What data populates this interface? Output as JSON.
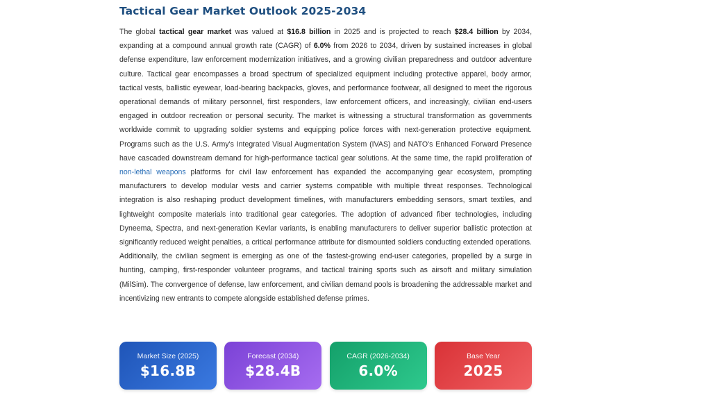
{
  "title": "Tactical Gear Market Outlook 2025-2034",
  "paragraph": {
    "s1": "The global ",
    "b1": "tactical gear market",
    "s2": " was valued at ",
    "b2": "$16.8 billion",
    "s3": " in 2025 and is projected to reach ",
    "b3": "$28.4 billion",
    "s4": " by 2034, expanding at a compound annual growth rate (CAGR) of ",
    "b4": "6.0%",
    "s5": " from 2026 to 2034, driven by sustained increases in global defense expenditure, law enforcement modernization initiatives, and a growing civilian preparedness and outdoor adventure culture. Tactical gear encompasses a broad spectrum of specialized equipment including protective apparel, body armor, tactical vests, ballistic eyewear, load-bearing backpacks, gloves, and performance footwear, all designed to meet the rigorous operational demands of military personnel, first responders, law enforcement officers, and increasingly, civilian end-users engaged in outdoor recreation or personal security. The market is witnessing a structural transformation as governments worldwide commit to upgrading soldier systems and equipping police forces with next-generation protective equipment. Programs such as the U.S. Army's Integrated Visual Augmentation System (IVAS) and NATO's Enhanced Forward Presence have cascaded downstream demand for high-performance tactical gear solutions. At the same time, the rapid proliferation of ",
    "link": "non-lethal weapons",
    "s6": " platforms for civil law enforcement has expanded the accompanying gear ecosystem, prompting manufacturers to develop modular vests and carrier systems compatible with multiple threat responses. Technological integration is also reshaping product development timelines, with manufacturers embedding sensors, smart textiles, and lightweight composite materials into traditional gear categories. The adoption of advanced fiber technologies, including Dyneema, Spectra, and next-generation Kevlar variants, is enabling manufacturers to deliver superior ballistic protection at significantly reduced weight penalties, a critical performance attribute for dismounted soldiers conducting extended operations. Additionally, the civilian segment is emerging as one of the fastest-growing end-user categories, propelled by a surge in hunting, camping, first-responder volunteer programs, and tactical training sports such as airsoft and military simulation (MilSim). The convergence of defense, law enforcement, and civilian demand pools is broadening the addressable market and incentivizing new entrants to compete alongside established defense primes."
  },
  "stats": [
    {
      "label": "Market Size (2025)",
      "value": "$16.8B",
      "color": "#2a64c9"
    },
    {
      "label": "Forecast (2034)",
      "value": "$28.4B",
      "color": "#8f57e3"
    },
    {
      "label": "CAGR (2026-2034)",
      "value": "6.0%",
      "color": "#1fb57b"
    },
    {
      "label": "Base Year",
      "value": "2025",
      "color": "#e5474b"
    }
  ],
  "colors": {
    "title": "#1f4f80",
    "link": "#2a6fb8"
  }
}
